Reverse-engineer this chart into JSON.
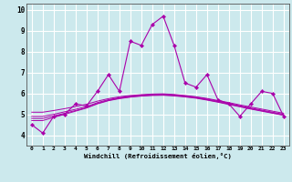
{
  "xlabel": "Windchill (Refroidissement éolien,°C)",
  "background_color": "#cce9ed",
  "line_color": "#aa00aa",
  "grid_color": "#ffffff",
  "xlim": [
    -0.5,
    23.5
  ],
  "ylim": [
    3.5,
    10.3
  ],
  "xticks": [
    0,
    1,
    2,
    3,
    4,
    5,
    6,
    7,
    8,
    9,
    10,
    11,
    12,
    13,
    14,
    15,
    16,
    17,
    18,
    19,
    20,
    21,
    22,
    23
  ],
  "yticks": [
    4,
    5,
    6,
    7,
    8,
    9,
    10
  ],
  "main_series": [
    4.5,
    4.1,
    4.9,
    5.0,
    5.5,
    5.4,
    6.1,
    6.9,
    6.1,
    8.5,
    8.3,
    9.3,
    9.7,
    8.3,
    6.5,
    6.3,
    6.9,
    5.7,
    5.5,
    4.9,
    5.5,
    6.1,
    6.0,
    4.9
  ],
  "smooth_series": [
    [
      4.7,
      4.7,
      4.85,
      5.0,
      5.15,
      5.3,
      5.5,
      5.65,
      5.75,
      5.82,
      5.87,
      5.9,
      5.91,
      5.88,
      5.83,
      5.77,
      5.68,
      5.58,
      5.47,
      5.36,
      5.25,
      5.15,
      5.05,
      4.95
    ],
    [
      4.8,
      4.8,
      4.92,
      5.05,
      5.18,
      5.32,
      5.52,
      5.67,
      5.77,
      5.84,
      5.89,
      5.92,
      5.93,
      5.9,
      5.85,
      5.79,
      5.7,
      5.6,
      5.49,
      5.38,
      5.27,
      5.17,
      5.07,
      4.97
    ],
    [
      4.9,
      4.9,
      5.0,
      5.12,
      5.24,
      5.37,
      5.56,
      5.7,
      5.8,
      5.87,
      5.92,
      5.95,
      5.96,
      5.93,
      5.88,
      5.82,
      5.73,
      5.63,
      5.52,
      5.41,
      5.3,
      5.2,
      5.1,
      5.0
    ],
    [
      5.1,
      5.1,
      5.18,
      5.27,
      5.37,
      5.48,
      5.63,
      5.75,
      5.84,
      5.9,
      5.94,
      5.97,
      5.98,
      5.95,
      5.9,
      5.84,
      5.76,
      5.66,
      5.56,
      5.45,
      5.35,
      5.25,
      5.15,
      5.05
    ]
  ]
}
